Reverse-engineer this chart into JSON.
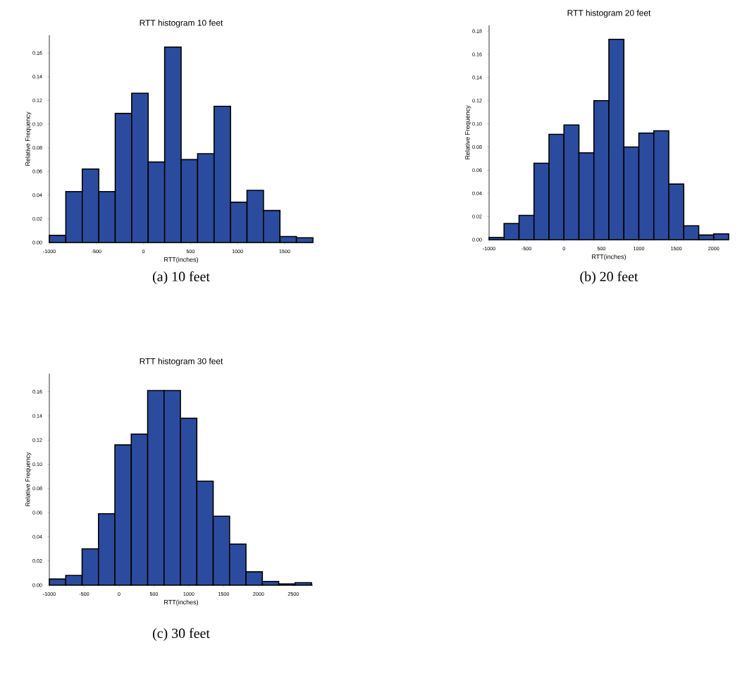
{
  "chart_data": [
    {
      "type": "histogram",
      "title": "RTT histogram 10 feet",
      "xlabel": "RTT(inches)",
      "ylabel": "Relative Frequency",
      "color": "#2b4c9e",
      "bins": [
        -1000,
        -825,
        -650,
        -475,
        -300,
        -125,
        50,
        225,
        400,
        575,
        750,
        925,
        1100,
        1275,
        1450,
        1625,
        1800
      ],
      "values": [
        0.006,
        0.043,
        0.062,
        0.043,
        0.109,
        0.126,
        0.068,
        0.165,
        0.07,
        0.075,
        0.115,
        0.034,
        0.044,
        0.027,
        0.005,
        0.004
      ],
      "xlim": [
        -1000,
        1800
      ],
      "ylim": [
        0,
        0.175
      ],
      "xticks": [
        -1000,
        -500,
        0,
        500,
        1000,
        1500
      ],
      "yticks": [
        {
          "value": 0,
          "label": "0.00"
        },
        {
          "value": 0.02,
          "label": "0.02"
        },
        {
          "value": 0.04,
          "label": "0.04"
        },
        {
          "value": 0.06,
          "label": "0.06"
        },
        {
          "value": 0.08,
          "label": "0.08"
        },
        {
          "value": 0.1,
          "label": "0.10"
        },
        {
          "value": 0.12,
          "label": "0.12"
        },
        {
          "value": 0.14,
          "label": "0.14"
        },
        {
          "value": 0.16,
          "label": "0.16"
        }
      ],
      "annotations": [
        "(a) 10 feet"
      ]
    },
    {
      "type": "histogram",
      "title": "RTT histogram 20 feet",
      "xlabel": "RTT(inches)",
      "ylabel": "Relative Frequency",
      "color": "#2b4c9e",
      "bins": [
        -1000,
        -800,
        -600,
        -400,
        -200,
        0,
        200,
        400,
        600,
        800,
        1000,
        1200,
        1400,
        1600,
        1800,
        2000,
        2200
      ],
      "values": [
        0.002,
        0.014,
        0.021,
        0.066,
        0.091,
        0.099,
        0.075,
        0.12,
        0.173,
        0.08,
        0.092,
        0.094,
        0.048,
        0.012,
        0.004,
        0.005
      ],
      "xlim": [
        -1000,
        2200
      ],
      "ylim": [
        0,
        0.185
      ],
      "xticks": [
        -1000,
        -500,
        0,
        500,
        1000,
        1500,
        2000
      ],
      "yticks": [
        {
          "value": 0,
          "label": "0.00"
        },
        {
          "value": 0.02,
          "label": "0.02"
        },
        {
          "value": 0.04,
          "label": "0.04"
        },
        {
          "value": 0.06,
          "label": "0.06"
        },
        {
          "value": 0.08,
          "label": "0.08"
        },
        {
          "value": 0.1,
          "label": "0.10"
        },
        {
          "value": 0.12,
          "label": "0.12"
        },
        {
          "value": 0.14,
          "label": "0.14"
        },
        {
          "value": 0.16,
          "label": "0.16"
        },
        {
          "value": 0.18,
          "label": "0.18"
        }
      ],
      "annotations": [
        "(b) 20 feet"
      ]
    },
    {
      "type": "histogram",
      "title": "RTT histogram 30 feet",
      "xlabel": "RTT(inches)",
      "ylabel": "Relative Frequency",
      "color": "#2b4c9e",
      "bins": [
        -1000,
        -765,
        -530,
        -295,
        -60,
        175,
        410,
        645,
        880,
        1115,
        1350,
        1585,
        1820,
        2055,
        2290,
        2525,
        2760
      ],
      "values": [
        0.005,
        0.008,
        0.03,
        0.059,
        0.116,
        0.125,
        0.161,
        0.161,
        0.138,
        0.086,
        0.057,
        0.034,
        0.011,
        0.003,
        0.001,
        0.002
      ],
      "xlim": [
        -1000,
        2780
      ],
      "ylim": [
        0,
        0.175
      ],
      "xticks": [
        -1000,
        -500,
        0,
        500,
        1000,
        1500,
        2000,
        2500
      ],
      "yticks": [
        {
          "value": 0,
          "label": "0.00"
        },
        {
          "value": 0.02,
          "label": "0.02"
        },
        {
          "value": 0.04,
          "label": "0.04"
        },
        {
          "value": 0.06,
          "label": "0.06"
        },
        {
          "value": 0.08,
          "label": "0.08"
        },
        {
          "value": 0.1,
          "label": "0.10"
        },
        {
          "value": 0.12,
          "label": "0.12"
        },
        {
          "value": 0.14,
          "label": "0.14"
        },
        {
          "value": 0.16,
          "label": "0.16"
        }
      ],
      "annotations": [
        "(c) 30 feet"
      ]
    }
  ]
}
